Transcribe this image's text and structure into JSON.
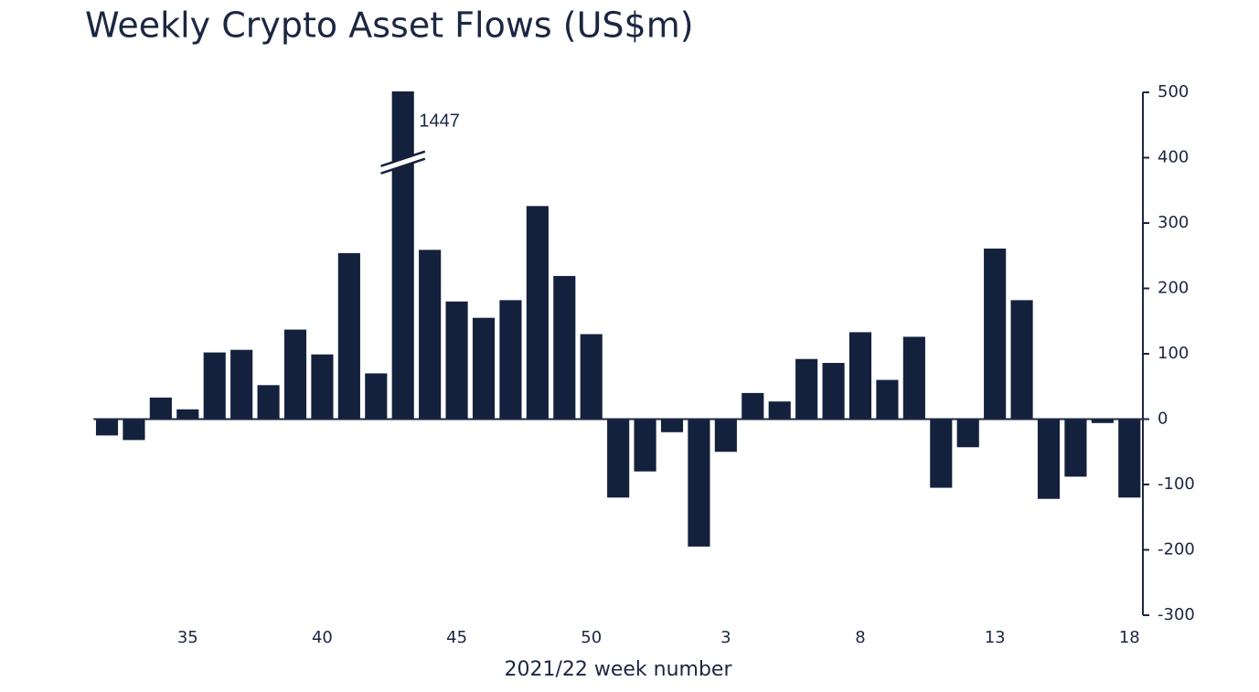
{
  "chart_data": {
    "type": "bar",
    "title": "Weekly Crypto Asset Flows (US$m)",
    "categories": [
      null,
      null,
      null,
      "35",
      null,
      null,
      null,
      null,
      "40",
      null,
      null,
      null,
      null,
      "45",
      null,
      null,
      null,
      null,
      "50",
      null,
      null,
      null,
      null,
      "3",
      null,
      null,
      null,
      null,
      "8",
      null,
      null,
      null,
      null,
      "13",
      null,
      null,
      null,
      null,
      "18"
    ],
    "values": [
      -25,
      -32,
      33,
      15,
      102,
      106,
      52,
      137,
      99,
      254,
      70,
      1447,
      259,
      180,
      155,
      182,
      326,
      219,
      130,
      -120,
      -80,
      -20,
      -195,
      -50,
      40,
      27,
      92,
      86,
      133,
      60,
      126,
      -105,
      -43,
      261,
      182,
      -122,
      -88,
      -6,
      -120
    ],
    "value_labels": [
      null,
      null,
      null,
      null,
      null,
      null,
      null,
      null,
      null,
      null,
      null,
      "1447",
      null,
      null,
      null,
      null,
      null,
      null,
      null,
      null,
      null,
      null,
      null,
      null,
      null,
      null,
      null,
      null,
      null,
      null,
      null,
      null,
      null,
      null,
      null,
      null,
      null,
      null,
      null
    ],
    "color": "#14213d",
    "x_label": "2021/22 week number",
    "ylim": [
      -300,
      500
    ],
    "yticks": [
      -300,
      -200,
      -100,
      0,
      100,
      200,
      300,
      400,
      500
    ],
    "y_axis_side": "right",
    "grid": false
  }
}
